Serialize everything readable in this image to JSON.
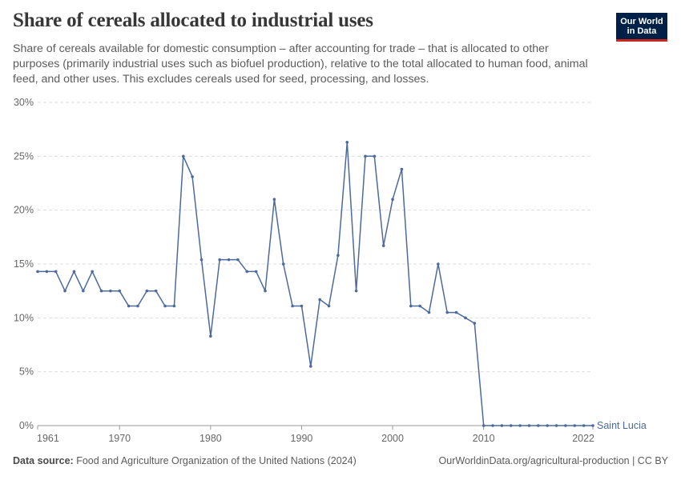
{
  "header": {
    "title": "Share of cereals allocated to industrial uses",
    "subtitle": "Share of cereals available for domestic consumption – after accounting for trade – that is allocated to other purposes (primarily industrial uses such as biofuel production), relative to the total allocated to human food, animal feed, and other uses. This excludes cereals used for seed, processing, and losses."
  },
  "logo": {
    "line1": "Our World",
    "line2": "in Data"
  },
  "footer": {
    "source_label": "Data source:",
    "source_text": "Food and Agriculture Organization of the United Nations (2024)",
    "right_text": "OurWorldinData.org/agricultural-production | CC BY"
  },
  "colors": {
    "series": "#4c6a9c",
    "grid": "#dddddd",
    "logo_bg": "#002147",
    "logo_accent": "#ce261e"
  },
  "chart_data": {
    "type": "line",
    "title": "Share of cereals allocated to industrial uses",
    "xlabel": "",
    "ylabel": "",
    "xlim": [
      1961,
      2022
    ],
    "ylim": [
      0,
      30
    ],
    "x_ticks": [
      "1961",
      "1970",
      "1980",
      "1990",
      "2000",
      "2010",
      "2022"
    ],
    "y_ticks": [
      "0%",
      "5%",
      "10%",
      "15%",
      "20%",
      "25%",
      "30%"
    ],
    "grid": "horizontal dashed",
    "series": [
      {
        "name": "Saint Lucia",
        "color": "#4c6a9c",
        "x": [
          1961,
          1962,
          1963,
          1964,
          1965,
          1966,
          1967,
          1968,
          1969,
          1970,
          1971,
          1972,
          1973,
          1974,
          1975,
          1976,
          1977,
          1978,
          1979,
          1980,
          1981,
          1982,
          1983,
          1984,
          1985,
          1986,
          1987,
          1988,
          1989,
          1990,
          1991,
          1992,
          1993,
          1994,
          1995,
          1996,
          1997,
          1998,
          1999,
          2000,
          2001,
          2002,
          2003,
          2004,
          2005,
          2006,
          2007,
          2008,
          2009,
          2010,
          2011,
          2012,
          2013,
          2014,
          2015,
          2016,
          2017,
          2018,
          2019,
          2020,
          2021,
          2022
        ],
        "values": [
          14.3,
          14.3,
          14.3,
          12.5,
          14.3,
          12.5,
          14.3,
          12.5,
          12.5,
          12.5,
          11.1,
          11.1,
          12.5,
          12.5,
          11.1,
          11.1,
          25.0,
          23.1,
          15.4,
          8.3,
          15.4,
          15.4,
          15.4,
          14.3,
          14.3,
          12.5,
          21.0,
          15.0,
          11.1,
          11.1,
          5.5,
          11.7,
          11.1,
          15.8,
          26.3,
          12.5,
          25.0,
          25.0,
          16.7,
          21.0,
          23.8,
          11.1,
          11.1,
          10.5,
          15.0,
          10.5,
          10.5,
          10.0,
          9.5,
          0,
          0,
          0,
          0,
          0,
          0,
          0,
          0,
          0,
          0,
          0,
          0,
          0
        ]
      }
    ]
  }
}
